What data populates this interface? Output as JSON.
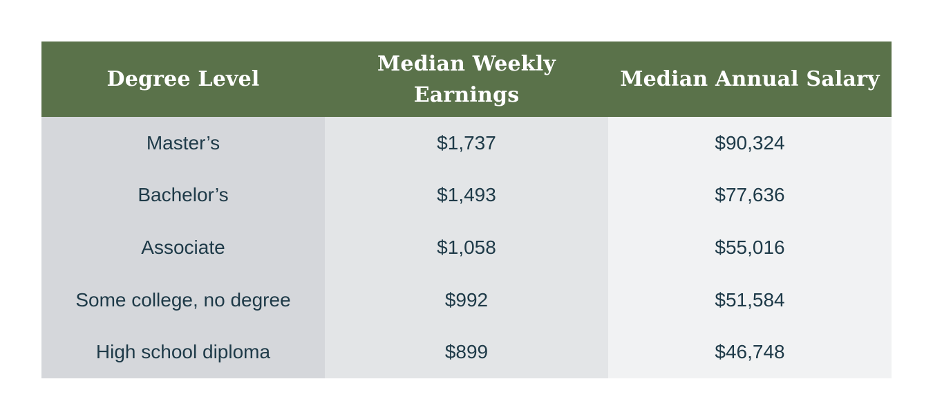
{
  "table": {
    "headers": [
      "Degree Level",
      "Median Weekly Earnings",
      "Median Annual Salary"
    ],
    "rows": [
      [
        "Master’s",
        "$1,737",
        "$90,324"
      ],
      [
        "Bachelor’s",
        "$1,493",
        "$77,636"
      ],
      [
        "Associate",
        "$1,058",
        "$55,016"
      ],
      [
        "Some college, no degree",
        "$992",
        "$51,584"
      ],
      [
        "High school diploma",
        "$899",
        "$46,748"
      ]
    ]
  },
  "colors": {
    "header_bg": "#5a724a",
    "header_text": "#ffffff",
    "body_text": "#1e3a48",
    "col1_bg": "#d5d7db",
    "col2_bg": "#e3e5e7",
    "col3_bg": "#f1f2f3"
  }
}
